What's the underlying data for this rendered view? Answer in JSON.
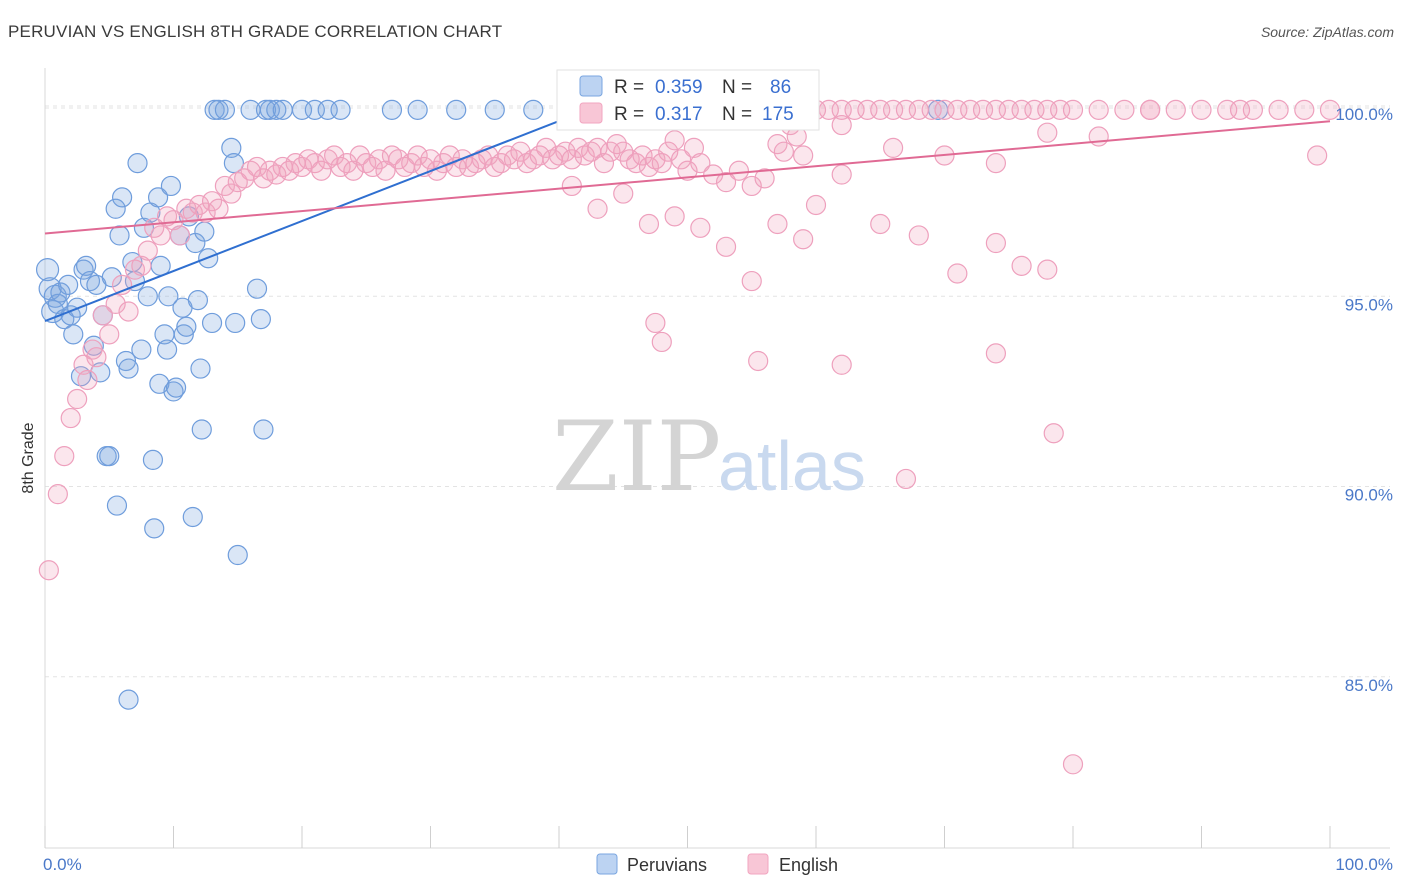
{
  "title": "PERUVIAN VS ENGLISH 8TH GRADE CORRELATION CHART",
  "source": "Source: ZipAtlas.com",
  "watermark": {
    "zip": "ZIP",
    "atlas": "atlas"
  },
  "chart_data": {
    "type": "scatter",
    "title": "PERUVIAN VS ENGLISH 8TH GRADE CORRELATION CHART",
    "xlabel": "",
    "ylabel": "8th Grade",
    "xlim": [
      0,
      100
    ],
    "ylim": [
      80.5,
      101.0
    ],
    "x_tick_labels": [
      "0.0%",
      "100.0%"
    ],
    "y_ticks": [
      85.0,
      90.0,
      95.0,
      100.0
    ],
    "y_tick_labels": [
      "85.0%",
      "90.0%",
      "95.0%",
      "100.0%"
    ],
    "grid": true,
    "legend": {
      "placement": "top-center",
      "entries": [
        {
          "r_label": "R =",
          "r_value": "0.359",
          "n_label": "N =",
          "n_value": "86"
        },
        {
          "r_label": "R =",
          "r_value": "0.317",
          "n_label": "N =",
          "n_value": "175"
        }
      ]
    },
    "series": [
      {
        "name": "Peruvians",
        "color": "#7aa6e0",
        "line_color": "#2f6fd0",
        "trend": {
          "x": [
            0,
            43
          ],
          "y": [
            94.35,
            100.0
          ]
        },
        "points": [
          [
            0.2,
            95.7
          ],
          [
            0.4,
            95.2
          ],
          [
            0.6,
            94.6
          ],
          [
            0.8,
            95.0
          ],
          [
            1.0,
            94.8
          ],
          [
            1.2,
            95.1
          ],
          [
            1.5,
            94.4
          ],
          [
            1.8,
            95.3
          ],
          [
            2.0,
            94.5
          ],
          [
            2.2,
            94.0
          ],
          [
            2.5,
            94.7
          ],
          [
            2.8,
            92.9
          ],
          [
            3.0,
            95.7
          ],
          [
            3.2,
            95.8
          ],
          [
            3.5,
            95.4
          ],
          [
            3.8,
            93.7
          ],
          [
            4.0,
            95.3
          ],
          [
            4.3,
            93.0
          ],
          [
            4.5,
            94.5
          ],
          [
            4.8,
            90.8
          ],
          [
            5.0,
            90.8
          ],
          [
            5.2,
            95.5
          ],
          [
            5.5,
            97.3
          ],
          [
            5.6,
            89.5
          ],
          [
            5.8,
            96.6
          ],
          [
            6.0,
            97.6
          ],
          [
            6.3,
            93.3
          ],
          [
            6.5,
            93.1
          ],
          [
            6.8,
            95.9
          ],
          [
            7.0,
            95.4
          ],
          [
            7.2,
            98.5
          ],
          [
            7.5,
            93.6
          ],
          [
            7.7,
            96.8
          ],
          [
            8.0,
            95.0
          ],
          [
            8.2,
            97.2
          ],
          [
            8.4,
            90.7
          ],
          [
            8.5,
            88.9
          ],
          [
            8.8,
            97.6
          ],
          [
            8.9,
            92.7
          ],
          [
            9.0,
            95.8
          ],
          [
            9.3,
            94.0
          ],
          [
            9.5,
            93.6
          ],
          [
            9.6,
            95.0
          ],
          [
            9.8,
            97.9
          ],
          [
            10.0,
            92.5
          ],
          [
            10.2,
            92.6
          ],
          [
            10.5,
            96.6
          ],
          [
            10.7,
            94.7
          ],
          [
            10.8,
            94.0
          ],
          [
            11.0,
            94.2
          ],
          [
            11.2,
            97.1
          ],
          [
            11.5,
            89.2
          ],
          [
            11.7,
            96.4
          ],
          [
            11.9,
            94.9
          ],
          [
            12.1,
            93.1
          ],
          [
            12.2,
            91.5
          ],
          [
            12.4,
            96.7
          ],
          [
            12.7,
            96.0
          ],
          [
            13.0,
            94.3
          ],
          [
            13.2,
            99.9
          ],
          [
            13.5,
            99.9
          ],
          [
            14.0,
            99.9
          ],
          [
            14.5,
            98.9
          ],
          [
            14.7,
            98.5
          ],
          [
            14.8,
            94.3
          ],
          [
            15.0,
            88.2
          ],
          [
            16.0,
            99.9
          ],
          [
            16.5,
            95.2
          ],
          [
            16.8,
            94.4
          ],
          [
            17.0,
            91.5
          ],
          [
            17.2,
            99.9
          ],
          [
            17.5,
            99.9
          ],
          [
            18.0,
            99.9
          ],
          [
            18.5,
            99.9
          ],
          [
            20.0,
            99.9
          ],
          [
            21.0,
            99.9
          ],
          [
            22.0,
            99.9
          ],
          [
            23.0,
            99.9
          ],
          [
            27.0,
            99.9
          ],
          [
            29.0,
            99.9
          ],
          [
            32.0,
            99.9
          ],
          [
            35.0,
            99.9
          ],
          [
            38.0,
            99.9
          ],
          [
            43.0,
            99.9
          ],
          [
            69.5,
            99.9
          ],
          [
            6.5,
            84.4
          ]
        ]
      },
      {
        "name": "English",
        "color": "#f2a5c0",
        "line_color": "#e06a94",
        "trend": {
          "x": [
            0,
            100
          ],
          "y": [
            96.65,
            99.6
          ]
        },
        "points": [
          [
            0.3,
            87.8
          ],
          [
            1.0,
            89.8
          ],
          [
            1.5,
            90.8
          ],
          [
            2.0,
            91.8
          ],
          [
            2.5,
            92.3
          ],
          [
            3.0,
            93.2
          ],
          [
            3.3,
            92.8
          ],
          [
            3.7,
            93.6
          ],
          [
            4.0,
            93.4
          ],
          [
            4.5,
            94.5
          ],
          [
            5.0,
            94.0
          ],
          [
            5.5,
            94.8
          ],
          [
            6.0,
            95.3
          ],
          [
            6.5,
            94.6
          ],
          [
            7.0,
            95.7
          ],
          [
            7.5,
            95.8
          ],
          [
            8.0,
            96.2
          ],
          [
            8.5,
            96.8
          ],
          [
            9.0,
            96.6
          ],
          [
            9.5,
            97.1
          ],
          [
            10.0,
            97.0
          ],
          [
            10.5,
            96.6
          ],
          [
            11.0,
            97.3
          ],
          [
            11.5,
            97.2
          ],
          [
            12.0,
            97.4
          ],
          [
            12.5,
            97.2
          ],
          [
            13.0,
            97.5
          ],
          [
            13.5,
            97.3
          ],
          [
            14.0,
            97.9
          ],
          [
            14.5,
            97.7
          ],
          [
            15.0,
            98.0
          ],
          [
            15.5,
            98.1
          ],
          [
            16.0,
            98.3
          ],
          [
            16.5,
            98.4
          ],
          [
            17.0,
            98.1
          ],
          [
            17.5,
            98.3
          ],
          [
            18.0,
            98.2
          ],
          [
            18.5,
            98.4
          ],
          [
            19.0,
            98.3
          ],
          [
            19.5,
            98.5
          ],
          [
            20.0,
            98.4
          ],
          [
            20.5,
            98.6
          ],
          [
            21.0,
            98.5
          ],
          [
            21.5,
            98.3
          ],
          [
            22.0,
            98.6
          ],
          [
            22.5,
            98.7
          ],
          [
            23.0,
            98.4
          ],
          [
            23.5,
            98.5
          ],
          [
            24.0,
            98.3
          ],
          [
            24.5,
            98.7
          ],
          [
            25.0,
            98.5
          ],
          [
            25.5,
            98.4
          ],
          [
            26.0,
            98.6
          ],
          [
            26.5,
            98.3
          ],
          [
            27.0,
            98.7
          ],
          [
            27.5,
            98.6
          ],
          [
            28.0,
            98.4
          ],
          [
            28.5,
            98.5
          ],
          [
            29.0,
            98.7
          ],
          [
            29.5,
            98.4
          ],
          [
            30.0,
            98.6
          ],
          [
            30.5,
            98.3
          ],
          [
            31.0,
            98.5
          ],
          [
            31.5,
            98.7
          ],
          [
            32.0,
            98.4
          ],
          [
            32.5,
            98.6
          ],
          [
            33.0,
            98.4
          ],
          [
            33.5,
            98.5
          ],
          [
            34.0,
            98.6
          ],
          [
            34.5,
            98.7
          ],
          [
            35.0,
            98.4
          ],
          [
            35.5,
            98.5
          ],
          [
            36.0,
            98.7
          ],
          [
            36.5,
            98.6
          ],
          [
            37.0,
            98.8
          ],
          [
            37.5,
            98.5
          ],
          [
            38.0,
            98.6
          ],
          [
            38.5,
            98.7
          ],
          [
            39.0,
            98.9
          ],
          [
            39.5,
            98.6
          ],
          [
            40.0,
            98.7
          ],
          [
            40.5,
            98.8
          ],
          [
            41.0,
            98.6
          ],
          [
            41.5,
            98.9
          ],
          [
            42.0,
            98.7
          ],
          [
            42.5,
            98.8
          ],
          [
            43.0,
            98.9
          ],
          [
            43.5,
            98.5
          ],
          [
            44.0,
            98.8
          ],
          [
            44.5,
            99.0
          ],
          [
            45.0,
            98.8
          ],
          [
            45.5,
            98.6
          ],
          [
            46.0,
            98.5
          ],
          [
            46.5,
            98.7
          ],
          [
            47.0,
            98.4
          ],
          [
            47.5,
            98.6
          ],
          [
            48.0,
            98.5
          ],
          [
            48.5,
            98.8
          ],
          [
            49.0,
            99.1
          ],
          [
            49.5,
            98.6
          ],
          [
            50.0,
            98.3
          ],
          [
            50.5,
            98.9
          ],
          [
            51.0,
            98.5
          ],
          [
            52.0,
            98.2
          ],
          [
            53.0,
            98.0
          ],
          [
            54.0,
            98.3
          ],
          [
            55.0,
            97.9
          ],
          [
            56.0,
            98.1
          ],
          [
            57.0,
            99.0
          ],
          [
            57.5,
            98.8
          ],
          [
            58.0,
            99.5
          ],
          [
            58.5,
            99.2
          ],
          [
            59.0,
            98.7
          ],
          [
            60.0,
            99.9
          ],
          [
            61.0,
            99.9
          ],
          [
            62.0,
            99.9
          ],
          [
            63.0,
            99.9
          ],
          [
            64.0,
            99.9
          ],
          [
            65.0,
            99.9
          ],
          [
            66.0,
            99.9
          ],
          [
            67.0,
            99.9
          ],
          [
            68.0,
            99.9
          ],
          [
            69.0,
            99.9
          ],
          [
            70.0,
            99.9
          ],
          [
            71.0,
            99.9
          ],
          [
            72.0,
            99.9
          ],
          [
            73.0,
            99.9
          ],
          [
            74.0,
            99.9
          ],
          [
            75.0,
            99.9
          ],
          [
            76.0,
            99.9
          ],
          [
            77.0,
            99.9
          ],
          [
            78.0,
            99.9
          ],
          [
            79.0,
            99.9
          ],
          [
            80.0,
            99.9
          ],
          [
            82.0,
            99.9
          ],
          [
            84.0,
            99.9
          ],
          [
            86.0,
            99.9
          ],
          [
            88.0,
            99.9
          ],
          [
            90.0,
            99.9
          ],
          [
            92.0,
            99.9
          ],
          [
            94.0,
            99.9
          ],
          [
            96.0,
            99.9
          ],
          [
            98.0,
            99.9
          ],
          [
            100.0,
            99.9
          ],
          [
            62.0,
            99.5
          ],
          [
            66.0,
            98.9
          ],
          [
            70.0,
            98.7
          ],
          [
            74.0,
            98.5
          ],
          [
            78.0,
            99.3
          ],
          [
            82.0,
            99.2
          ],
          [
            86.0,
            99.9
          ],
          [
            93.0,
            99.9
          ],
          [
            99.0,
            98.7
          ],
          [
            41.0,
            97.9
          ],
          [
            43.0,
            97.3
          ],
          [
            45.0,
            97.7
          ],
          [
            47.0,
            96.9
          ],
          [
            49.0,
            97.1
          ],
          [
            51.0,
            96.8
          ],
          [
            53.0,
            96.3
          ],
          [
            55.0,
            95.4
          ],
          [
            57.0,
            96.9
          ],
          [
            59.0,
            96.5
          ],
          [
            60.0,
            97.4
          ],
          [
            62.0,
            98.2
          ],
          [
            65.0,
            96.9
          ],
          [
            68.0,
            96.6
          ],
          [
            71.0,
            95.6
          ],
          [
            74.0,
            96.4
          ],
          [
            76.0,
            95.8
          ],
          [
            78.0,
            95.7
          ],
          [
            47.5,
            94.3
          ],
          [
            48.0,
            93.8
          ],
          [
            55.5,
            93.3
          ],
          [
            62.0,
            93.2
          ],
          [
            74.0,
            93.5
          ],
          [
            78.5,
            91.4
          ],
          [
            67.0,
            90.2
          ],
          [
            80.0,
            82.7
          ]
        ]
      }
    ]
  }
}
